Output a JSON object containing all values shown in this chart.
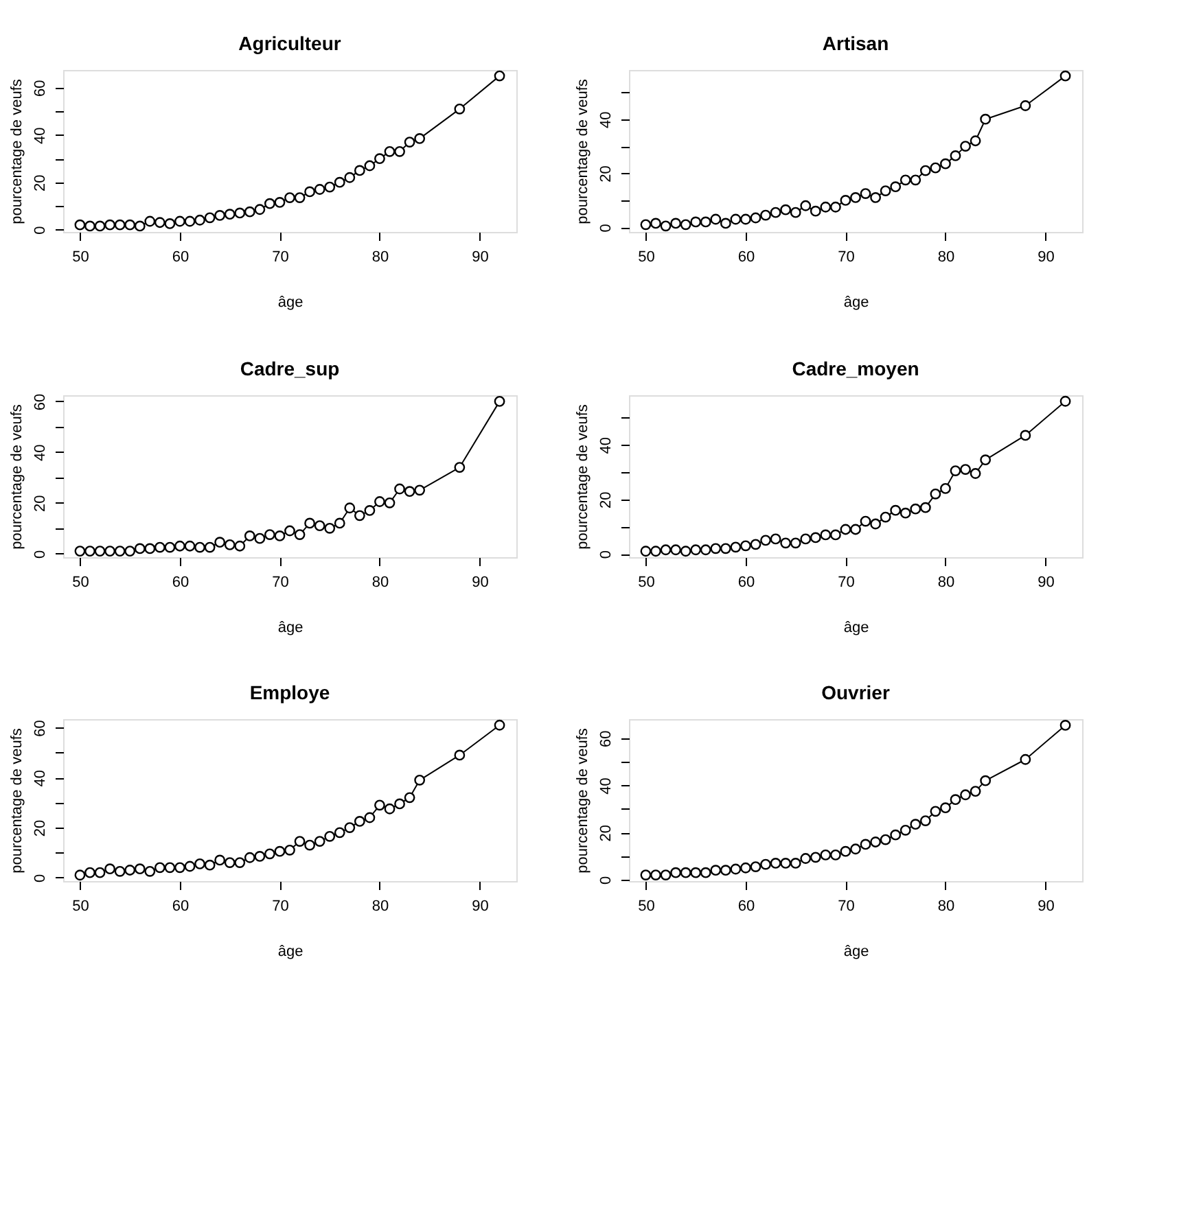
{
  "chart_data": [
    {
      "type": "line",
      "title": "Agriculteur",
      "xlabel": "âge",
      "ylabel": "pourcentage de veufs",
      "marker": "circle",
      "line_style": "solid",
      "grid": false,
      "xlim": [
        48.32,
        93.68
      ],
      "xticks": [
        50,
        60,
        70,
        80,
        90
      ],
      "ylim": [
        -1,
        67.5
      ],
      "yticks": [
        0,
        {
          "value": 10,
          "label": null
        },
        20,
        {
          "value": 30,
          "label": null
        },
        40,
        {
          "value": 50,
          "label": null
        },
        60
      ],
      "x": [
        50,
        51,
        52,
        53,
        54,
        55,
        56,
        57,
        58,
        59,
        60,
        61,
        62,
        63,
        64,
        65,
        66,
        67,
        68,
        69,
        70,
        71,
        72,
        73,
        74,
        75,
        76,
        77,
        78,
        79,
        80,
        81,
        82,
        83,
        84,
        88,
        92
      ],
      "series": [
        {
          "color": "#000000",
          "values": [
            2,
            1.5,
            1.5,
            2,
            2,
            2,
            1.5,
            3.5,
            3,
            2.5,
            3.5,
            3.5,
            4,
            5,
            6,
            6.5,
            7,
            7.5,
            8.5,
            11,
            11.5,
            13.5,
            13.5,
            16,
            17,
            18,
            20,
            22,
            25,
            27,
            30,
            33,
            33,
            37,
            38.5,
            51,
            65
          ]
        }
      ]
    },
    {
      "type": "line",
      "title": "Artisan",
      "xlabel": "âge",
      "ylabel": "pourcentage de veufs",
      "marker": "circle",
      "line_style": "solid",
      "grid": false,
      "xlim": [
        48.32,
        93.68
      ],
      "xticks": [
        50,
        60,
        70,
        80,
        90
      ],
      "ylim": [
        -1.7,
        58.2
      ],
      "yticks": [
        0,
        {
          "value": 10,
          "label": null
        },
        20,
        {
          "value": 30,
          "label": null
        },
        40,
        {
          "value": 50,
          "label": null
        }
      ],
      "x": [
        50,
        51,
        52,
        53,
        54,
        55,
        56,
        57,
        58,
        59,
        60,
        61,
        62,
        63,
        64,
        65,
        66,
        67,
        68,
        69,
        70,
        71,
        72,
        73,
        74,
        75,
        76,
        77,
        78,
        79,
        80,
        81,
        82,
        83,
        84,
        88,
        92
      ],
      "series": [
        {
          "color": "#000000",
          "values": [
            1,
            1.5,
            0.5,
            1.5,
            1,
            2,
            2,
            3,
            1.5,
            3,
            3,
            3.5,
            4.5,
            5.5,
            6.5,
            5.5,
            8,
            6,
            7.5,
            7.5,
            10,
            11,
            12.5,
            11,
            13.5,
            15,
            17.5,
            17.5,
            21,
            22,
            23.5,
            26.5,
            30,
            32,
            40,
            45,
            56
          ]
        }
      ]
    },
    {
      "type": "line",
      "title": "Cadre_sup",
      "xlabel": "âge",
      "ylabel": "pourcentage de veufs",
      "marker": "circle",
      "line_style": "solid",
      "grid": false,
      "xlim": [
        48.32,
        93.68
      ],
      "xticks": [
        50,
        60,
        70,
        80,
        90
      ],
      "ylim": [
        -1.4,
        62.4
      ],
      "yticks": [
        0,
        {
          "value": 10,
          "label": null
        },
        20,
        {
          "value": 30,
          "label": null
        },
        40,
        {
          "value": 50,
          "label": null
        },
        60
      ],
      "x": [
        50,
        51,
        52,
        53,
        54,
        55,
        56,
        57,
        58,
        59,
        60,
        61,
        62,
        63,
        64,
        65,
        66,
        67,
        68,
        69,
        70,
        71,
        72,
        73,
        74,
        75,
        76,
        77,
        78,
        79,
        80,
        81,
        82,
        83,
        84,
        88,
        92
      ],
      "series": [
        {
          "color": "#000000",
          "values": [
            1,
            1,
            1,
            1,
            1,
            1,
            2,
            2,
            2.5,
            2.5,
            3,
            3,
            2.5,
            2.5,
            4.5,
            3.5,
            3,
            7,
            6,
            7.5,
            7,
            9,
            7.5,
            12,
            11,
            10,
            12,
            18,
            15,
            17,
            20.5,
            20,
            25.5,
            24.5,
            25,
            34,
            60
          ]
        }
      ]
    },
    {
      "type": "line",
      "title": "Cadre_moyen",
      "xlabel": "âge",
      "ylabel": "pourcentage de veufs",
      "marker": "circle",
      "line_style": "solid",
      "grid": false,
      "xlim": [
        48.32,
        93.68
      ],
      "xticks": [
        50,
        60,
        70,
        80,
        90
      ],
      "ylim": [
        -1.2,
        58.2
      ],
      "yticks": [
        0,
        {
          "value": 10,
          "label": null
        },
        20,
        {
          "value": 30,
          "label": null
        },
        40,
        {
          "value": 50,
          "label": null
        }
      ],
      "x": [
        50,
        51,
        52,
        53,
        54,
        55,
        56,
        57,
        58,
        59,
        60,
        61,
        62,
        63,
        64,
        65,
        66,
        67,
        68,
        69,
        70,
        71,
        72,
        73,
        74,
        75,
        76,
        77,
        78,
        79,
        80,
        81,
        82,
        83,
        84,
        88,
        92
      ],
      "series": [
        {
          "color": "#000000",
          "values": [
            1,
            1,
            1.5,
            1.5,
            1,
            1.5,
            1.5,
            2,
            2,
            2.5,
            3,
            3.5,
            5,
            5.5,
            4,
            4,
            5.5,
            6,
            7,
            7,
            9,
            9,
            12,
            11,
            13.5,
            16,
            15,
            16.5,
            17,
            22,
            24,
            30.5,
            31,
            29.5,
            34.5,
            43.5,
            56
          ]
        }
      ]
    },
    {
      "type": "line",
      "title": "Employe",
      "xlabel": "âge",
      "ylabel": "pourcentage de veufs",
      "marker": "circle",
      "line_style": "solid",
      "grid": false,
      "xlim": [
        48.32,
        93.68
      ],
      "xticks": [
        50,
        60,
        70,
        80,
        90
      ],
      "ylim": [
        -1.4,
        63.4
      ],
      "yticks": [
        0,
        {
          "value": 10,
          "label": null
        },
        20,
        {
          "value": 30,
          "label": null
        },
        40,
        {
          "value": 50,
          "label": null
        },
        60
      ],
      "x": [
        50,
        51,
        52,
        53,
        54,
        55,
        56,
        57,
        58,
        59,
        60,
        61,
        62,
        63,
        64,
        65,
        66,
        67,
        68,
        69,
        70,
        71,
        72,
        73,
        74,
        75,
        76,
        77,
        78,
        79,
        80,
        81,
        82,
        83,
        84,
        88,
        92
      ],
      "series": [
        {
          "color": "#000000",
          "values": [
            1,
            2,
            2,
            3.5,
            2.5,
            3,
            3.5,
            2.5,
            4,
            4,
            4,
            4.5,
            5.5,
            5,
            7,
            6,
            6,
            8,
            8.5,
            9.5,
            10.5,
            11,
            14.5,
            13,
            14.5,
            16.5,
            18,
            20,
            22.5,
            24,
            29,
            27.5,
            29.5,
            32,
            39,
            49,
            61
          ]
        }
      ]
    },
    {
      "type": "line",
      "title": "Ouvrier",
      "xlabel": "âge",
      "ylabel": "pourcentage de veufs",
      "marker": "circle",
      "line_style": "solid",
      "grid": false,
      "xlim": [
        48.32,
        93.68
      ],
      "xticks": [
        50,
        60,
        70,
        80,
        90
      ],
      "ylim": [
        -0.6,
        68.1
      ],
      "yticks": [
        0,
        {
          "value": 10,
          "label": null
        },
        20,
        {
          "value": 30,
          "label": null
        },
        40,
        {
          "value": 50,
          "label": null
        },
        60
      ],
      "x": [
        50,
        51,
        52,
        53,
        54,
        55,
        56,
        57,
        58,
        59,
        60,
        61,
        62,
        63,
        64,
        65,
        66,
        67,
        68,
        69,
        70,
        71,
        72,
        73,
        74,
        75,
        76,
        77,
        78,
        79,
        80,
        81,
        82,
        83,
        84,
        88,
        92
      ],
      "series": [
        {
          "color": "#000000",
          "values": [
            2,
            2,
            2,
            3,
            3,
            3,
            3,
            4,
            4,
            4.5,
            5,
            5.5,
            6.5,
            7,
            7,
            7,
            9,
            9.5,
            10.5,
            10.5,
            12,
            13,
            15,
            16,
            17,
            19,
            21,
            23.5,
            25,
            29,
            30.5,
            34,
            36,
            37.5,
            42,
            51,
            65.5
          ]
        }
      ]
    }
  ]
}
